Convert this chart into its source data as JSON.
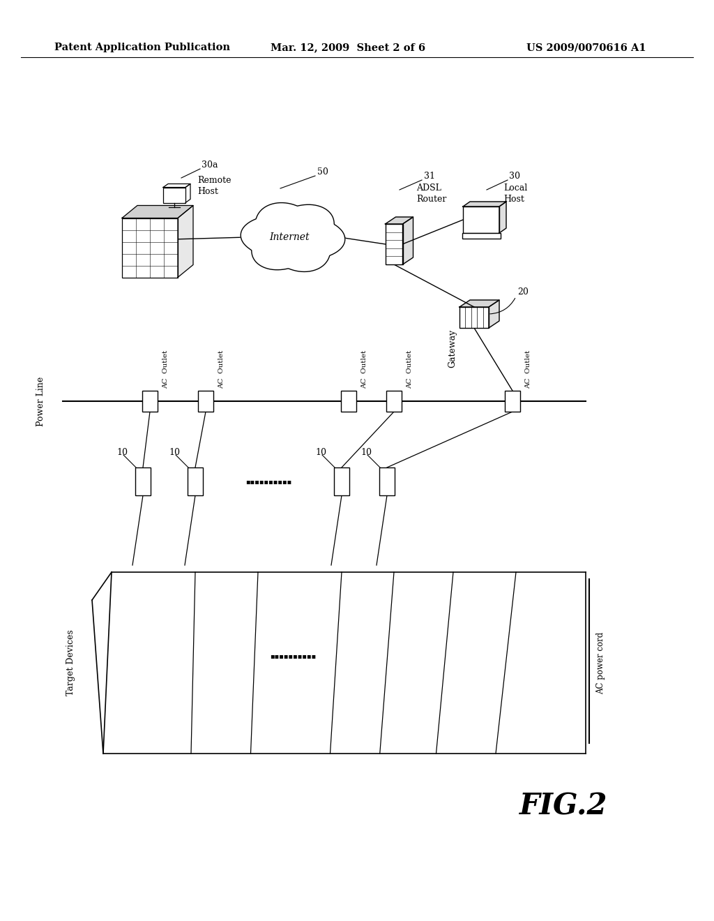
{
  "bg_color": "#ffffff",
  "header_left": "Patent Application Publication",
  "header_mid": "Mar. 12, 2009  Sheet 2 of 6",
  "header_right": "US 2009/0070616 A1",
  "fig_label": "FIG.2",
  "power_line_label": "Power Line",
  "target_devices_label": "Target Devices",
  "ac_power_cord_label": "AC power cord",
  "outlet_labels": [
    "AC  Outlet",
    "AC  Outlet",
    "AC  Outlet",
    "AC  Outlet",
    "AC  Outlet"
  ],
  "monitor_labels": [
    "10",
    "10",
    "10",
    "10"
  ],
  "dots_small": "▪▪▪▪▪▪▪▪▪▪",
  "label_30a": "30a",
  "label_remote_host": "Remote\nHost",
  "label_50": "50",
  "label_internet": "Internet",
  "label_31": "31",
  "label_adsl": "ADSL\nRouter",
  "label_30": "30",
  "label_local_host": "Local\nHost",
  "label_20": "20",
  "label_gateway": "Gateway",
  "line_color": "#000000",
  "text_color": "#000000"
}
